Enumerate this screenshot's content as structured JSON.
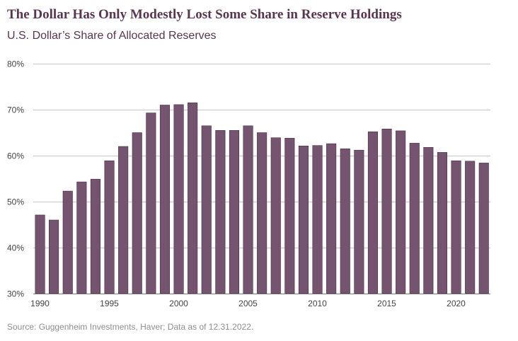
{
  "title": "The Dollar Has Only Modestly Lost Some Share in Reserve Holdings",
  "subtitle": "U.S. Dollar’s Share of Allocated Reserves",
  "source": "Source: Guggenheim Investments, Haver; Data as of 12.31.2022.",
  "colors": {
    "bar": "#74546f",
    "bar_edge": "#4a2f46",
    "grid": "#c8c8c8",
    "axis": "#777777",
    "title": "#5a3552"
  },
  "chart_data": {
    "type": "bar",
    "title": "The Dollar Has Only Modestly Lost Some Share in Reserve Holdings",
    "subtitle": "U.S. Dollar’s Share of Allocated Reserves",
    "xlabel": "",
    "ylabel": "",
    "ylim": [
      30,
      80
    ],
    "grid": true,
    "legend": "none",
    "y_ticks": [
      30,
      40,
      50,
      60,
      70,
      80
    ],
    "y_tick_labels": [
      "30%",
      "40%",
      "50%",
      "60%",
      "70%",
      "80%"
    ],
    "x_tick_labels": [
      "1990",
      "1995",
      "2000",
      "2005",
      "2010",
      "2015",
      "2020"
    ],
    "x_tick_years": [
      1990,
      1995,
      2000,
      2005,
      2010,
      2015,
      2020
    ],
    "categories": [
      1990,
      1991,
      1992,
      1993,
      1994,
      1995,
      1996,
      1997,
      1998,
      1999,
      2000,
      2001,
      2002,
      2003,
      2004,
      2005,
      2006,
      2007,
      2008,
      2009,
      2010,
      2011,
      2012,
      2013,
      2014,
      2015,
      2016,
      2017,
      2018,
      2019,
      2020,
      2021,
      2022
    ],
    "values": [
      47.1,
      46.0,
      52.3,
      54.3,
      54.9,
      58.9,
      62.0,
      65.0,
      69.3,
      71.0,
      71.1,
      71.5,
      66.5,
      65.5,
      65.5,
      66.5,
      65.0,
      63.9,
      63.8,
      62.1,
      62.2,
      62.6,
      61.5,
      61.2,
      65.2,
      65.8,
      65.4,
      62.7,
      61.8,
      60.7,
      58.9,
      58.8,
      58.4
    ]
  }
}
